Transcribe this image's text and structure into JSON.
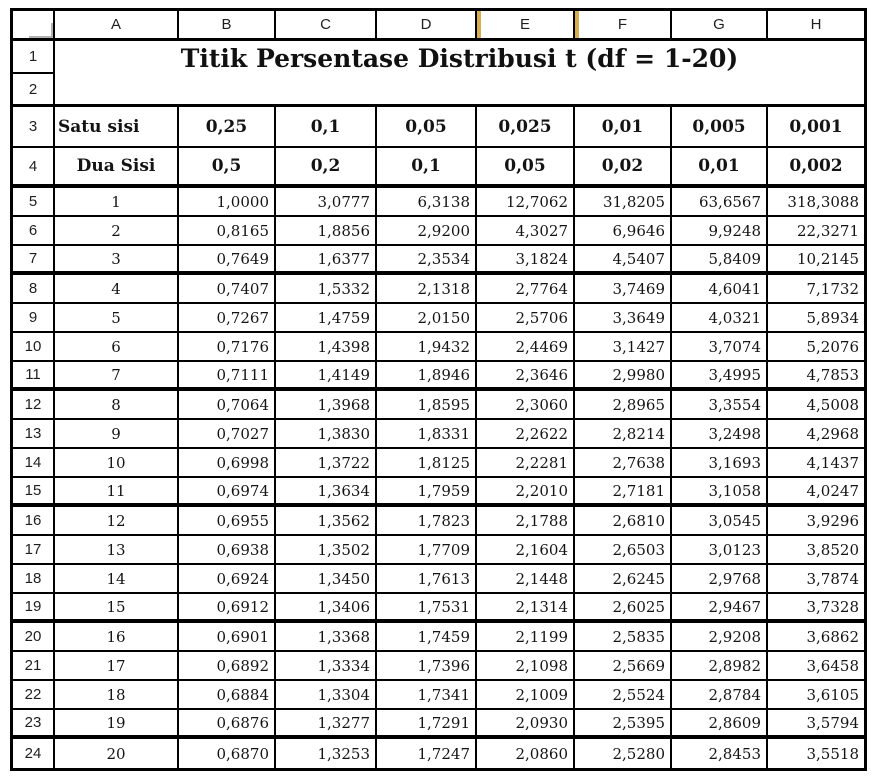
{
  "title": "Titik Persentase Distribusi t (df = 1-20)",
  "sheet": {
    "column_headers": [
      "A",
      "B",
      "C",
      "D",
      "E",
      "F",
      "G",
      "H"
    ],
    "highlighted_column_edges": [
      "E",
      "F"
    ],
    "title_row_numbers": [
      "1",
      "2"
    ]
  },
  "header_rows": {
    "satu": {
      "row_num": "3",
      "label": "Satu sisi",
      "values": [
        "0,25",
        "0,1",
        "0,05",
        "0,025",
        "0,01",
        "0,005",
        "0,001"
      ]
    },
    "dua": {
      "row_num": "4",
      "label": "Dua Sisi",
      "values": [
        "0,5",
        "0,2",
        "0,1",
        "0,05",
        "0,02",
        "0,01",
        "0,002"
      ]
    }
  },
  "data_rows": [
    {
      "row_num": "5",
      "df": "1",
      "values": [
        "1,0000",
        "3,0777",
        "6,3138",
        "12,7062",
        "31,8205",
        "63,6567",
        "318,3088"
      ]
    },
    {
      "row_num": "6",
      "df": "2",
      "values": [
        "0,8165",
        "1,8856",
        "2,9200",
        "4,3027",
        "6,9646",
        "9,9248",
        "22,3271"
      ]
    },
    {
      "row_num": "7",
      "df": "3",
      "values": [
        "0,7649",
        "1,6377",
        "2,3534",
        "3,1824",
        "4,5407",
        "5,8409",
        "10,2145"
      ]
    },
    {
      "row_num": "8",
      "df": "4",
      "values": [
        "0,7407",
        "1,5332",
        "2,1318",
        "2,7764",
        "3,7469",
        "4,6041",
        "7,1732"
      ]
    },
    {
      "row_num": "9",
      "df": "5",
      "values": [
        "0,7267",
        "1,4759",
        "2,0150",
        "2,5706",
        "3,3649",
        "4,0321",
        "5,8934"
      ]
    },
    {
      "row_num": "10",
      "df": "6",
      "values": [
        "0,7176",
        "1,4398",
        "1,9432",
        "2,4469",
        "3,1427",
        "3,7074",
        "5,2076"
      ]
    },
    {
      "row_num": "11",
      "df": "7",
      "values": [
        "0,7111",
        "1,4149",
        "1,8946",
        "2,3646",
        "2,9980",
        "3,4995",
        "4,7853"
      ]
    },
    {
      "row_num": "12",
      "df": "8",
      "values": [
        "0,7064",
        "1,3968",
        "1,8595",
        "2,3060",
        "2,8965",
        "3,3554",
        "4,5008"
      ]
    },
    {
      "row_num": "13",
      "df": "9",
      "values": [
        "0,7027",
        "1,3830",
        "1,8331",
        "2,2622",
        "2,8214",
        "3,2498",
        "4,2968"
      ]
    },
    {
      "row_num": "14",
      "df": "10",
      "values": [
        "0,6998",
        "1,3722",
        "1,8125",
        "2,2281",
        "2,7638",
        "3,1693",
        "4,1437"
      ]
    },
    {
      "row_num": "15",
      "df": "11",
      "values": [
        "0,6974",
        "1,3634",
        "1,7959",
        "2,2010",
        "2,7181",
        "3,1058",
        "4,0247"
      ]
    },
    {
      "row_num": "16",
      "df": "12",
      "values": [
        "0,6955",
        "1,3562",
        "1,7823",
        "2,1788",
        "2,6810",
        "3,0545",
        "3,9296"
      ]
    },
    {
      "row_num": "17",
      "df": "13",
      "values": [
        "0,6938",
        "1,3502",
        "1,7709",
        "2,1604",
        "2,6503",
        "3,0123",
        "3,8520"
      ]
    },
    {
      "row_num": "18",
      "df": "14",
      "values": [
        "0,6924",
        "1,3450",
        "1,7613",
        "2,1448",
        "2,6245",
        "2,9768",
        "3,7874"
      ]
    },
    {
      "row_num": "19",
      "df": "15",
      "values": [
        "0,6912",
        "1,3406",
        "1,7531",
        "2,1314",
        "2,6025",
        "2,9467",
        "3,7328"
      ]
    },
    {
      "row_num": "20",
      "df": "16",
      "values": [
        "0,6901",
        "1,3368",
        "1,7459",
        "2,1199",
        "2,5835",
        "2,9208",
        "3,6862"
      ]
    },
    {
      "row_num": "21",
      "df": "17",
      "values": [
        "0,6892",
        "1,3334",
        "1,7396",
        "2,1098",
        "2,5669",
        "2,8982",
        "3,6458"
      ]
    },
    {
      "row_num": "22",
      "df": "18",
      "values": [
        "0,6884",
        "1,3304",
        "1,7341",
        "2,1009",
        "2,5524",
        "2,8784",
        "3,6105"
      ]
    },
    {
      "row_num": "23",
      "df": "19",
      "values": [
        "0,6876",
        "1,3277",
        "1,7291",
        "2,0930",
        "2,5395",
        "2,8609",
        "3,5794"
      ]
    },
    {
      "row_num": "24",
      "df": "20",
      "values": [
        "0,6870",
        "1,3253",
        "1,7247",
        "2,0860",
        "2,5280",
        "2,8453",
        "3,5518"
      ]
    }
  ],
  "colors": {
    "grid_border": "#000000",
    "column_highlight": "#d4ae52",
    "corner_accent": "#b3b3b3",
    "header_text": "#1f1f1f",
    "cell_text": "#141414"
  }
}
